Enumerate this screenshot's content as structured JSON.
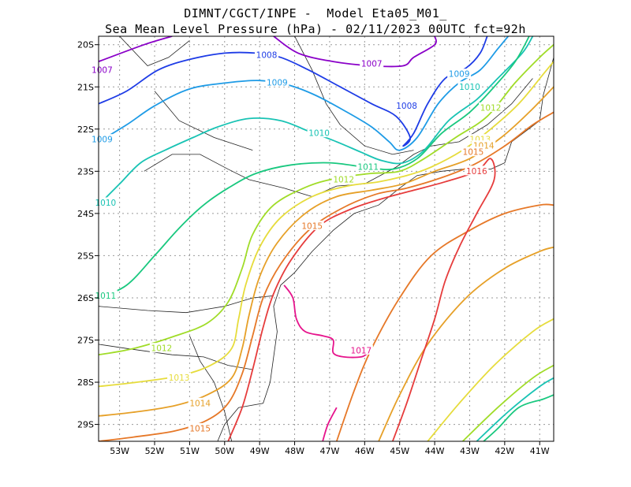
{
  "title_line1": "DIMNT/CGCT/INPE -  Model Eta05_M01_",
  "title_line2": "Sea Mean Level Pressure (hPa) - 02/11/2023 00UTC fct=92h",
  "chart_data": {
    "type": "contour",
    "variable": "Sea Mean Level Pressure",
    "units": "hPa",
    "xlim": [
      -53.6,
      -40.6
    ],
    "ylim": [
      -29.4,
      -19.8
    ],
    "x_ticks": [
      -53,
      -52,
      -51,
      -50,
      -49,
      -48,
      -47,
      -46,
      -45,
      -44,
      -43,
      -42,
      -41
    ],
    "x_tick_labels": [
      "53W",
      "52W",
      "51W",
      "50W",
      "49W",
      "48W",
      "47W",
      "46W",
      "45W",
      "44W",
      "43W",
      "42W",
      "41W"
    ],
    "y_ticks": [
      -20,
      -21,
      -22,
      -23,
      -24,
      -25,
      -26,
      -27,
      -28,
      -29
    ],
    "y_tick_labels": [
      "20S",
      "21S",
      "22S",
      "23S",
      "24S",
      "25S",
      "26S",
      "27S",
      "28S",
      "29S"
    ],
    "grid": true,
    "contours": [
      {
        "level": 1007,
        "label": "1007",
        "color": "#8a00c8",
        "points": [
          [
            -53.6,
            -20.4
          ],
          [
            -52.3,
            -20.0
          ],
          [
            -51.5,
            -19.8
          ]
        ],
        "points2": [
          [
            -48.6,
            -19.8
          ],
          [
            -47.9,
            -20.2
          ],
          [
            -46.9,
            -20.4
          ],
          [
            -45.8,
            -20.5
          ],
          [
            -44.9,
            -20.5
          ],
          [
            -44.6,
            -20.3
          ],
          [
            -44.0,
            -20.0
          ],
          [
            -44.0,
            -19.8
          ]
        ],
        "labels_at": [
          [
            -53.5,
            -20.6
          ],
          [
            -45.8,
            -20.45
          ]
        ]
      },
      {
        "level": 1008,
        "label": "1008",
        "color": "#1e3ce6",
        "points": [
          [
            -53.6,
            -21.4
          ],
          [
            -52.8,
            -21.1
          ],
          [
            -51.9,
            -20.6
          ],
          [
            -51.0,
            -20.35
          ],
          [
            -50.0,
            -20.2
          ],
          [
            -49.1,
            -20.2
          ],
          [
            -48.4,
            -20.3
          ],
          [
            -47.6,
            -20.6
          ],
          [
            -46.7,
            -21.0
          ],
          [
            -45.8,
            -21.4
          ],
          [
            -45.1,
            -21.7
          ],
          [
            -44.7,
            -22.2
          ],
          [
            -44.9,
            -22.4
          ],
          [
            -44.6,
            -22.1
          ],
          [
            -44.2,
            -21.4
          ],
          [
            -43.7,
            -20.8
          ],
          [
            -43.1,
            -20.55
          ],
          [
            -42.7,
            -20.2
          ],
          [
            -42.5,
            -19.8
          ]
        ],
        "labels_at": [
          [
            -48.8,
            -20.25
          ],
          [
            -44.8,
            -21.45
          ]
        ]
      },
      {
        "level": 1009,
        "label": "1009",
        "color": "#1e9be6",
        "points": [
          [
            -53.6,
            -22.3
          ],
          [
            -52.8,
            -21.9
          ],
          [
            -52.0,
            -21.45
          ],
          [
            -51.0,
            -21.05
          ],
          [
            -49.9,
            -20.9
          ],
          [
            -49.0,
            -20.85
          ],
          [
            -48.2,
            -20.95
          ],
          [
            -47.4,
            -21.2
          ],
          [
            -46.5,
            -21.6
          ],
          [
            -45.8,
            -21.95
          ],
          [
            -45.3,
            -22.3
          ],
          [
            -45.0,
            -22.5
          ],
          [
            -44.5,
            -22.2
          ],
          [
            -43.9,
            -21.4
          ],
          [
            -43.3,
            -20.9
          ],
          [
            -42.7,
            -20.6
          ],
          [
            -42.2,
            -20.1
          ],
          [
            -41.9,
            -19.8
          ]
        ],
        "labels_at": [
          [
            -53.5,
            -22.25
          ],
          [
            -48.5,
            -20.9
          ],
          [
            -43.3,
            -20.7
          ]
        ]
      },
      {
        "level": 1010,
        "label": "1010",
        "color": "#19c3b4",
        "points": [
          [
            -53.6,
            -23.8
          ],
          [
            -53.0,
            -23.3
          ],
          [
            -52.4,
            -22.8
          ],
          [
            -51.7,
            -22.5
          ],
          [
            -50.9,
            -22.2
          ],
          [
            -50.2,
            -21.95
          ],
          [
            -49.3,
            -21.75
          ],
          [
            -48.4,
            -21.8
          ],
          [
            -47.6,
            -22.05
          ],
          [
            -46.8,
            -22.3
          ],
          [
            -46.1,
            -22.55
          ],
          [
            -45.5,
            -22.75
          ],
          [
            -44.9,
            -22.8
          ],
          [
            -44.3,
            -22.5
          ],
          [
            -43.6,
            -21.8
          ],
          [
            -42.8,
            -21.3
          ],
          [
            -42.2,
            -20.8
          ],
          [
            -41.5,
            -20.2
          ],
          [
            -41.2,
            -19.8
          ]
        ],
        "labels_at": [
          [
            -53.4,
            -23.75
          ],
          [
            -47.3,
            -22.1
          ],
          [
            -43.0,
            -21.0
          ]
        ]
      },
      {
        "level": 1011,
        "label": "1011",
        "color": "#19c87f",
        "points": [
          [
            -53.6,
            -26.0
          ],
          [
            -52.8,
            -25.7
          ],
          [
            -52.0,
            -25.0
          ],
          [
            -51.3,
            -24.35
          ],
          [
            -50.6,
            -23.8
          ],
          [
            -49.9,
            -23.4
          ],
          [
            -49.1,
            -23.05
          ],
          [
            -48.1,
            -22.85
          ],
          [
            -47.0,
            -22.8
          ],
          [
            -46.0,
            -22.9
          ],
          [
            -45.2,
            -22.95
          ],
          [
            -44.5,
            -22.7
          ],
          [
            -43.8,
            -22.1
          ],
          [
            -43.0,
            -21.6
          ],
          [
            -42.3,
            -21.0
          ],
          [
            -41.7,
            -20.4
          ],
          [
            -41.3,
            -19.8
          ]
        ],
        "labels_at": [
          [
            -53.4,
            -25.95
          ],
          [
            -45.9,
            -22.9
          ]
        ]
      },
      {
        "level": 1012,
        "label": "1012",
        "color": "#a0dc28",
        "points": [
          [
            -53.6,
            -27.35
          ],
          [
            -52.6,
            -27.2
          ],
          [
            -51.4,
            -26.9
          ],
          [
            -50.5,
            -26.6
          ],
          [
            -49.9,
            -26.1
          ],
          [
            -49.5,
            -25.3
          ],
          [
            -49.2,
            -24.5
          ],
          [
            -48.6,
            -23.8
          ],
          [
            -47.6,
            -23.35
          ],
          [
            -46.7,
            -23.15
          ],
          [
            -45.8,
            -23.05
          ],
          [
            -45.0,
            -23.0
          ],
          [
            -44.3,
            -22.7
          ],
          [
            -43.4,
            -22.2
          ],
          [
            -42.5,
            -21.7
          ],
          [
            -41.7,
            -20.9
          ],
          [
            -41.0,
            -20.3
          ],
          [
            -40.6,
            -20.0
          ]
        ],
        "points2": [
          [
            -43.2,
            -29.4
          ],
          [
            -42.2,
            -28.6
          ],
          [
            -41.2,
            -27.9
          ],
          [
            -40.6,
            -27.6
          ]
        ],
        "labels_at": [
          [
            -51.8,
            -27.2
          ],
          [
            -46.6,
            -23.2
          ],
          [
            -42.4,
            -21.5
          ]
        ]
      },
      {
        "level": 1013,
        "label": "1013",
        "color": "#e6dc3c",
        "points": [
          [
            -53.6,
            -28.1
          ],
          [
            -52.5,
            -28.0
          ],
          [
            -51.3,
            -27.85
          ],
          [
            -50.4,
            -27.6
          ],
          [
            -49.8,
            -27.2
          ],
          [
            -49.6,
            -26.5
          ],
          [
            -49.4,
            -25.7
          ],
          [
            -49.0,
            -24.8
          ],
          [
            -48.4,
            -24.1
          ],
          [
            -47.5,
            -23.6
          ],
          [
            -46.5,
            -23.35
          ],
          [
            -45.6,
            -23.25
          ],
          [
            -44.8,
            -23.1
          ],
          [
            -44.1,
            -22.9
          ],
          [
            -43.2,
            -22.5
          ],
          [
            -42.4,
            -22.0
          ],
          [
            -41.6,
            -21.4
          ],
          [
            -40.9,
            -20.7
          ],
          [
            -40.6,
            -20.4
          ]
        ],
        "points2": [
          [
            -44.2,
            -29.4
          ],
          [
            -43.3,
            -28.5
          ],
          [
            -42.3,
            -27.6
          ],
          [
            -41.2,
            -26.8
          ],
          [
            -40.6,
            -26.5
          ]
        ],
        "labels_at": [
          [
            -51.3,
            -27.9
          ],
          [
            -42.7,
            -22.25
          ]
        ]
      },
      {
        "level": 1014,
        "label": "1014",
        "color": "#e6a028",
        "points": [
          [
            -53.6,
            -28.8
          ],
          [
            -52.5,
            -28.7
          ],
          [
            -51.4,
            -28.55
          ],
          [
            -50.5,
            -28.3
          ],
          [
            -49.8,
            -27.9
          ],
          [
            -49.5,
            -27.2
          ],
          [
            -49.3,
            -26.4
          ],
          [
            -49.0,
            -25.5
          ],
          [
            -48.5,
            -24.7
          ],
          [
            -47.7,
            -24.0
          ],
          [
            -46.8,
            -23.6
          ],
          [
            -45.8,
            -23.45
          ],
          [
            -44.9,
            -23.3
          ],
          [
            -44.0,
            -23.0
          ],
          [
            -43.0,
            -22.7
          ],
          [
            -42.1,
            -22.2
          ],
          [
            -41.3,
            -21.6
          ],
          [
            -40.6,
            -21.0
          ]
        ],
        "points2": [
          [
            -45.6,
            -29.4
          ],
          [
            -45.0,
            -28.3
          ],
          [
            -44.2,
            -27.1
          ],
          [
            -43.1,
            -26.0
          ],
          [
            -42.0,
            -25.3
          ],
          [
            -41.0,
            -24.9
          ],
          [
            -40.6,
            -24.8
          ]
        ],
        "labels_at": [
          [
            -50.7,
            -28.5
          ],
          [
            -42.6,
            -22.4
          ]
        ]
      },
      {
        "level": 1015,
        "label": "1015",
        "color": "#e67828",
        "points": [
          [
            -53.6,
            -29.4
          ],
          [
            -52.6,
            -29.3
          ],
          [
            -51.4,
            -29.15
          ],
          [
            -50.5,
            -28.9
          ],
          [
            -49.9,
            -28.5
          ],
          [
            -49.5,
            -27.8
          ],
          [
            -49.2,
            -26.9
          ],
          [
            -48.9,
            -26.0
          ],
          [
            -48.4,
            -25.2
          ],
          [
            -47.6,
            -24.4
          ],
          [
            -46.7,
            -23.9
          ],
          [
            -45.7,
            -23.55
          ],
          [
            -44.8,
            -23.4
          ],
          [
            -43.8,
            -23.15
          ],
          [
            -42.9,
            -22.85
          ],
          [
            -42.0,
            -22.4
          ],
          [
            -41.2,
            -21.9
          ],
          [
            -40.6,
            -21.6
          ]
        ],
        "points2": [
          [
            -46.8,
            -29.4
          ],
          [
            -46.3,
            -28.2
          ],
          [
            -45.8,
            -27.2
          ],
          [
            -45.0,
            -26.0
          ],
          [
            -44.1,
            -25.0
          ],
          [
            -43.0,
            -24.4
          ],
          [
            -42.0,
            -24.0
          ],
          [
            -41.0,
            -23.8
          ],
          [
            -40.6,
            -23.8
          ]
        ],
        "labels_at": [
          [
            -50.7,
            -29.1
          ],
          [
            -47.5,
            -24.3
          ],
          [
            -42.9,
            -22.55
          ]
        ]
      },
      {
        "level": 1016,
        "label": "1016",
        "color": "#e63c3c",
        "points": [
          [
            -49.9,
            -29.4
          ],
          [
            -49.5,
            -28.6
          ],
          [
            -49.2,
            -27.7
          ],
          [
            -48.9,
            -26.7
          ],
          [
            -48.6,
            -25.9
          ],
          [
            -48.1,
            -25.1
          ],
          [
            -47.3,
            -24.3
          ],
          [
            -46.4,
            -23.9
          ],
          [
            -45.5,
            -23.65
          ],
          [
            -44.6,
            -23.45
          ],
          [
            -43.7,
            -23.25
          ],
          [
            -42.8,
            -23.0
          ],
          [
            -42.4,
            -22.7
          ],
          [
            -42.3,
            -23.2
          ],
          [
            -42.8,
            -24.0
          ],
          [
            -43.3,
            -24.8
          ],
          [
            -43.7,
            -25.6
          ],
          [
            -44.0,
            -26.5
          ],
          [
            -44.4,
            -27.5
          ],
          [
            -44.8,
            -28.5
          ],
          [
            -45.2,
            -29.4
          ]
        ],
        "labels_at": [
          [
            -42.8,
            -23.0
          ]
        ]
      },
      {
        "level": 1017,
        "label": "1017",
        "color": "#e6148c",
        "points": [
          [
            -48.3,
            -25.7
          ],
          [
            -48.05,
            -26.0
          ],
          [
            -47.95,
            -26.5
          ],
          [
            -47.7,
            -26.8
          ],
          [
            -47.2,
            -26.9
          ],
          [
            -46.9,
            -27.0
          ],
          [
            -46.9,
            -27.3
          ],
          [
            -46.6,
            -27.4
          ],
          [
            -46.1,
            -27.4
          ],
          [
            -45.9,
            -27.3
          ]
        ],
        "points2": [
          [
            -47.2,
            -29.4
          ],
          [
            -47.05,
            -29.0
          ],
          [
            -46.8,
            -28.6
          ]
        ],
        "labels_at": [
          [
            -46.1,
            -27.25
          ]
        ]
      },
      {
        "level": 1010,
        "label": "",
        "color": "#19c3b4",
        "points": [
          [
            -42.8,
            -29.4
          ],
          [
            -41.9,
            -28.7
          ],
          [
            -41.0,
            -28.1
          ],
          [
            -40.6,
            -27.9
          ]
        ],
        "labels_at": []
      },
      {
        "level": 1011,
        "label": "",
        "color": "#19c87f",
        "points": [
          [
            -42.6,
            -29.4
          ],
          [
            -42.2,
            -29.1
          ],
          [
            -41.6,
            -28.6
          ],
          [
            -40.9,
            -28.4
          ],
          [
            -40.6,
            -28.3
          ]
        ],
        "labels_at": []
      }
    ]
  }
}
